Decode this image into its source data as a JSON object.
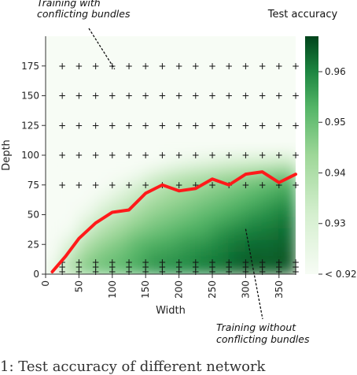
{
  "chart_data": {
    "type": "heatmap",
    "xlabel": "Width",
    "ylabel": "Depth",
    "x_ticks": [
      0,
      50,
      100,
      150,
      200,
      250,
      300,
      350
    ],
    "y_ticks": [
      0,
      25,
      50,
      75,
      100,
      125,
      150,
      175
    ],
    "xlim": [
      0,
      375
    ],
    "ylim": [
      0,
      200
    ],
    "colorbar": {
      "title": "Test accuracy",
      "ticks": [
        "< 0.92",
        "0.93",
        "0.94",
        "0.95",
        "0.96"
      ],
      "tick_values": [
        0.92,
        0.93,
        0.94,
        0.95,
        0.96
      ],
      "range": [
        0.92,
        0.967
      ],
      "colormap": "Greens"
    },
    "accuracy_grid": {
      "x": [
        12.5,
        37.5,
        62.5,
        87.5,
        112.5,
        137.5,
        162.5,
        187.5,
        212.5,
        237.5,
        262.5,
        287.5,
        312.5,
        337.5,
        362.5
      ],
      "y": [
        5,
        15,
        25,
        35,
        45,
        55,
        65,
        75,
        85,
        95
      ],
      "values": [
        [
          0.925,
          0.94,
          0.948,
          0.95,
          0.952,
          0.955,
          0.958,
          0.959,
          0.96,
          0.961,
          0.962,
          0.964,
          0.965,
          0.964,
          0.965
        ],
        [
          0.921,
          0.935,
          0.944,
          0.948,
          0.95,
          0.953,
          0.956,
          0.957,
          0.958,
          0.96,
          0.961,
          0.963,
          0.964,
          0.964,
          0.965
        ],
        [
          0.92,
          0.93,
          0.94,
          0.945,
          0.948,
          0.952,
          0.954,
          0.955,
          0.957,
          0.958,
          0.96,
          0.962,
          0.963,
          0.963,
          0.964
        ],
        [
          0.92,
          0.922,
          0.934,
          0.94,
          0.944,
          0.948,
          0.95,
          0.952,
          0.954,
          0.955,
          0.958,
          0.96,
          0.961,
          0.962,
          0.963
        ],
        [
          0.92,
          0.92,
          0.928,
          0.936,
          0.94,
          0.944,
          0.947,
          0.949,
          0.951,
          0.953,
          0.955,
          0.957,
          0.959,
          0.96,
          0.962
        ],
        [
          0.92,
          0.92,
          0.922,
          0.93,
          0.935,
          0.94,
          0.944,
          0.946,
          0.948,
          0.95,
          0.952,
          0.954,
          0.956,
          0.958,
          0.96
        ],
        [
          0.92,
          0.92,
          0.92,
          0.924,
          0.93,
          0.935,
          0.94,
          0.943,
          0.945,
          0.947,
          0.949,
          0.951,
          0.953,
          0.955,
          0.957
        ],
        [
          0.92,
          0.92,
          0.92,
          0.92,
          0.924,
          0.93,
          0.936,
          0.94,
          0.942,
          0.944,
          0.946,
          0.948,
          0.95,
          0.952,
          0.954
        ],
        [
          0.92,
          0.92,
          0.92,
          0.92,
          0.92,
          0.922,
          0.928,
          0.933,
          0.936,
          0.938,
          0.94,
          0.942,
          0.944,
          0.946,
          0.948
        ],
        [
          0.92,
          0.92,
          0.92,
          0.92,
          0.92,
          0.92,
          0.92,
          0.922,
          0.924,
          0.926,
          0.928,
          0.93,
          0.931,
          0.932,
          0.933
        ]
      ]
    },
    "boundary_line": {
      "color": "#ff1a1a",
      "points": [
        [
          10,
          2
        ],
        [
          30,
          15
        ],
        [
          50,
          30
        ],
        [
          75,
          43
        ],
        [
          100,
          52
        ],
        [
          125,
          54
        ],
        [
          150,
          68
        ],
        [
          175,
          75
        ],
        [
          200,
          70
        ],
        [
          225,
          72
        ],
        [
          250,
          80
        ],
        [
          275,
          75
        ],
        [
          300,
          84
        ],
        [
          325,
          86
        ],
        [
          350,
          77
        ],
        [
          375,
          84
        ]
      ]
    },
    "markers": {
      "symbol": "+",
      "x": [
        25,
        50,
        75,
        100,
        125,
        150,
        175,
        200,
        225,
        250,
        275,
        300,
        325,
        350,
        375
      ],
      "y_rows_far": [
        175,
        150,
        125,
        100,
        75
      ],
      "y_rows_near": [
        2,
        6,
        10
      ]
    },
    "annotations": [
      {
        "lines": [
          "Training with",
          "conflicting bundles"
        ],
        "points_to": [
          100,
          175
        ]
      },
      {
        "lines": [
          "Training without",
          "conflicting bundles"
        ],
        "points_to": [
          300,
          38
        ]
      }
    ]
  },
  "caption_fragment": "1: Test accuracy of different network"
}
